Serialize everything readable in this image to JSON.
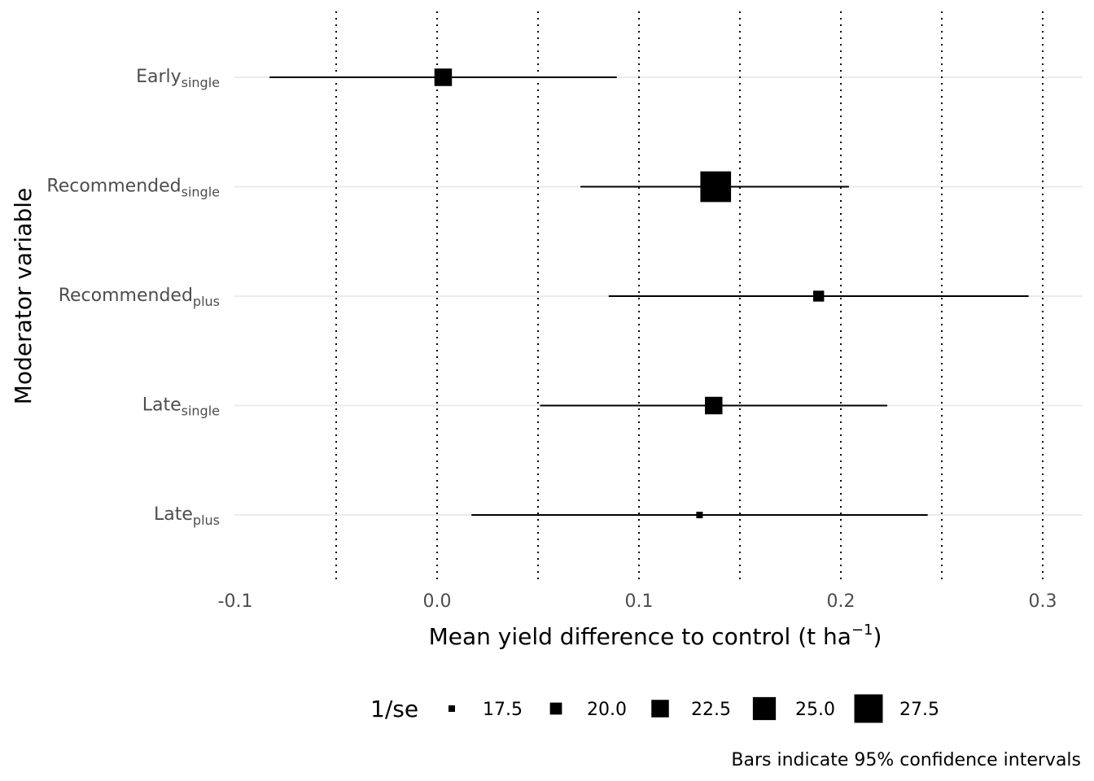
{
  "chart_data": {
    "type": "forest",
    "xlabel": "Mean yield difference to control (t ha",
    "xlabel_sup": "−1",
    "xlabel_end": ")",
    "ylabel": "Moderator variable",
    "xlim": [
      -0.1,
      0.3
    ],
    "x_ticks": [
      -0.1,
      0.0,
      0.1,
      0.2,
      0.3
    ],
    "x_tick_labels": [
      "-0.1",
      "0.0",
      "0.1",
      "0.2",
      "0.3"
    ],
    "reference_lines": [
      -0.05,
      0.0,
      0.05,
      0.1,
      0.15,
      0.2,
      0.25,
      0.3
    ],
    "rows": [
      {
        "label": "Early",
        "sub": "single",
        "estimate": 0.003,
        "ci_low": -0.083,
        "ci_high": 0.089,
        "inv_se": 22.5
      },
      {
        "label": "Recommended",
        "sub": "single",
        "estimate": 0.138,
        "ci_low": 0.071,
        "ci_high": 0.204,
        "inv_se": 28.5
      },
      {
        "label": "Recommended",
        "sub": "plus",
        "estimate": 0.189,
        "ci_low": 0.085,
        "ci_high": 0.293,
        "inv_se": 19.5
      },
      {
        "label": "Late",
        "sub": "single",
        "estimate": 0.137,
        "ci_low": 0.051,
        "ci_high": 0.223,
        "inv_se": 22.5
      },
      {
        "label": "Late",
        "sub": "plus",
        "estimate": 0.13,
        "ci_low": 0.017,
        "ci_high": 0.243,
        "inv_se": 17.5
      }
    ],
    "legend": {
      "title": "1/se",
      "position": "bottom",
      "entries": [
        {
          "value": 17.5,
          "label": "17.5"
        },
        {
          "value": 20.0,
          "label": "20.0"
        },
        {
          "value": 22.5,
          "label": "22.5"
        },
        {
          "value": 25.0,
          "label": "25.0"
        },
        {
          "value": 27.5,
          "label": "27.5"
        }
      ]
    },
    "caption": "Bars indicate 95% confidence intervals"
  }
}
